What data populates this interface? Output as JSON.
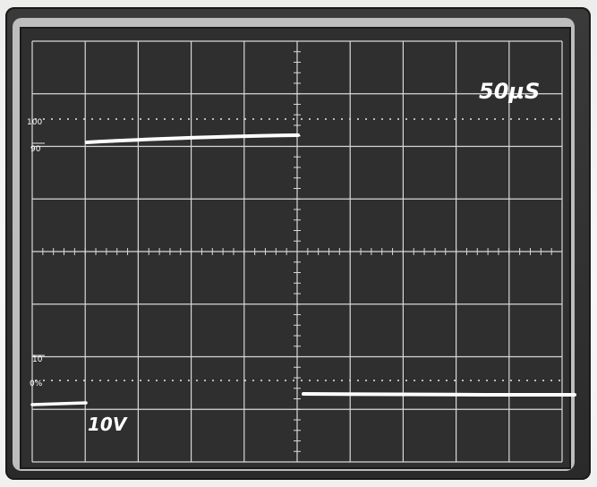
{
  "scope": {
    "timebase_label": "50µS",
    "volts_label": "10V",
    "graticule": {
      "label_100": "100",
      "label_90": "90",
      "label_10": "10",
      "label_0": "0%"
    }
  }
}
